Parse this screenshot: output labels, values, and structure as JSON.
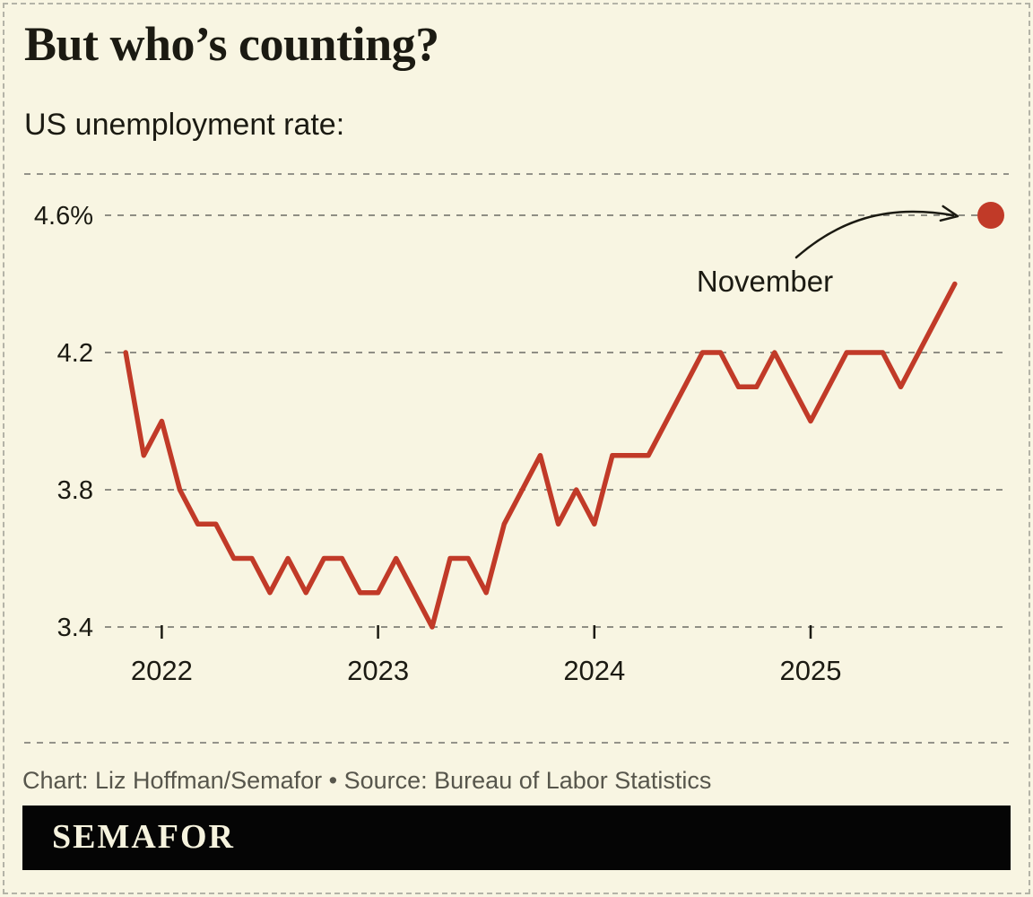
{
  "title": "But who’s counting?",
  "subtitle": "US unemployment rate:",
  "footer": {
    "credit": "Chart: Liz Hoffman/Semafor • Source: Bureau of Labor Statistics"
  },
  "logo": {
    "text": "SEMAFOR"
  },
  "colors": {
    "background": "#f8f5e2",
    "line": "#c13a28",
    "highlight_dot": "#c13a28",
    "text": "#1b1a12",
    "grid": "#8f8e84",
    "credit_text": "#57564c",
    "logo_bar": "#050505",
    "logo_text": "#f6f3de"
  },
  "chart_data": {
    "type": "line",
    "series_name": "US unemployment rate (%)",
    "start_month": "2021-11",
    "end_month": "2025-09",
    "monthly_values": [
      4.2,
      3.9,
      4.0,
      3.8,
      3.7,
      3.7,
      3.6,
      3.6,
      3.5,
      3.6,
      3.5,
      3.6,
      3.6,
      3.5,
      3.5,
      3.6,
      3.5,
      3.4,
      3.6,
      3.6,
      3.5,
      3.7,
      3.8,
      3.9,
      3.7,
      3.8,
      3.7,
      3.9,
      3.9,
      3.9,
      4.0,
      4.1,
      4.2,
      4.2,
      4.1,
      4.1,
      4.2,
      4.1,
      4.0,
      4.1,
      4.2,
      4.2,
      4.2,
      4.1,
      4.2,
      4.3,
      4.4
    ],
    "highlight_point": {
      "month": "2025-11",
      "label": "November",
      "value": 4.6
    },
    "y_ticks": [
      {
        "label": "4.6%",
        "value": 4.6
      },
      {
        "label": "4.2",
        "value": 4.2
      },
      {
        "label": "3.8",
        "value": 3.8
      },
      {
        "label": "3.4",
        "value": 3.4
      }
    ],
    "x_ticks": [
      {
        "label": "2022",
        "month": "2022-01"
      },
      {
        "label": "2023",
        "month": "2023-01"
      },
      {
        "label": "2024",
        "month": "2024-01"
      },
      {
        "label": "2025",
        "month": "2025-01"
      }
    ],
    "ylim": [
      3.4,
      4.6
    ],
    "grid": "horizontal-dashed",
    "legend": "none"
  }
}
